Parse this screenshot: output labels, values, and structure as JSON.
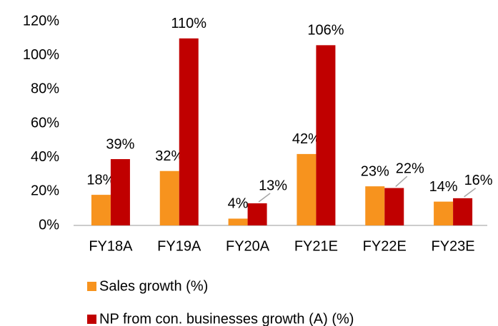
{
  "chart_data": {
    "type": "bar",
    "categories": [
      "FY18A",
      "FY19A",
      "FY20A",
      "FY21E",
      "FY22E",
      "FY23E"
    ],
    "series": [
      {
        "name": "Sales growth (%)",
        "color": "#f7931e",
        "values": [
          18,
          32,
          4,
          42,
          23,
          14
        ],
        "value_labels": [
          "18%",
          "32%",
          "4%",
          "42%",
          "23%",
          "14%"
        ]
      },
      {
        "name": "NP from con. businesses growth (A) (%)",
        "color": "#c00000",
        "values": [
          39,
          110,
          13,
          106,
          22,
          16
        ],
        "value_labels": [
          "39%",
          "110%",
          "13%",
          "106%",
          "22%",
          "16%"
        ]
      }
    ],
    "ylim": [
      0,
      120
    ],
    "yticks": [
      {
        "value": 0,
        "label": "0%"
      },
      {
        "value": 20,
        "label": "20%"
      },
      {
        "value": 40,
        "label": "40%"
      },
      {
        "value": 60,
        "label": "60%"
      },
      {
        "value": 80,
        "label": "80%"
      },
      {
        "value": 100,
        "label": "100%"
      },
      {
        "value": 120,
        "label": "120%"
      }
    ],
    "grid": false,
    "legend": "bottom"
  }
}
